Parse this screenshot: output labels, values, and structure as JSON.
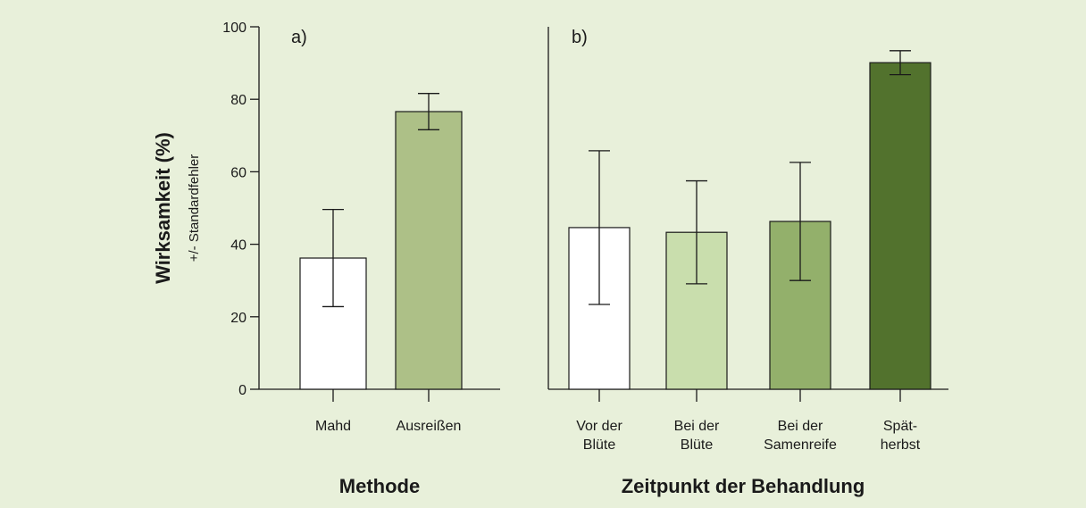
{
  "chart_data": [
    {
      "type": "bar",
      "panel_label": "a)",
      "y_label": "Wirksamkeit (%)",
      "y_sublabel": "+/- Standardfehler",
      "x_label": "Methode",
      "categories": [
        [
          "Mahd"
        ],
        [
          "Ausreißen"
        ]
      ],
      "values": [
        36.2,
        76.6
      ],
      "errors": [
        13.4,
        5.0
      ],
      "colors": [
        "#ffffff",
        "#adc087"
      ],
      "ylim": [
        0,
        100
      ],
      "yticks": [
        0,
        20,
        40,
        60,
        80,
        100
      ]
    },
    {
      "type": "bar",
      "panel_label": "b)",
      "x_label": "Zeitpunkt der Behandlung",
      "categories": [
        [
          "Vor der",
          "Blüte"
        ],
        [
          "Bei der",
          "Blüte"
        ],
        [
          "Bei der",
          "Samenreife"
        ],
        [
          "Spät-",
          "herbst"
        ]
      ],
      "values": [
        44.6,
        43.3,
        46.3,
        90.1
      ],
      "errors": [
        21.2,
        14.2,
        16.3,
        3.3
      ],
      "colors": [
        "#ffffff",
        "#c9dead",
        "#93b06b",
        "#52722d"
      ],
      "ylim": [
        0,
        100
      ]
    }
  ]
}
